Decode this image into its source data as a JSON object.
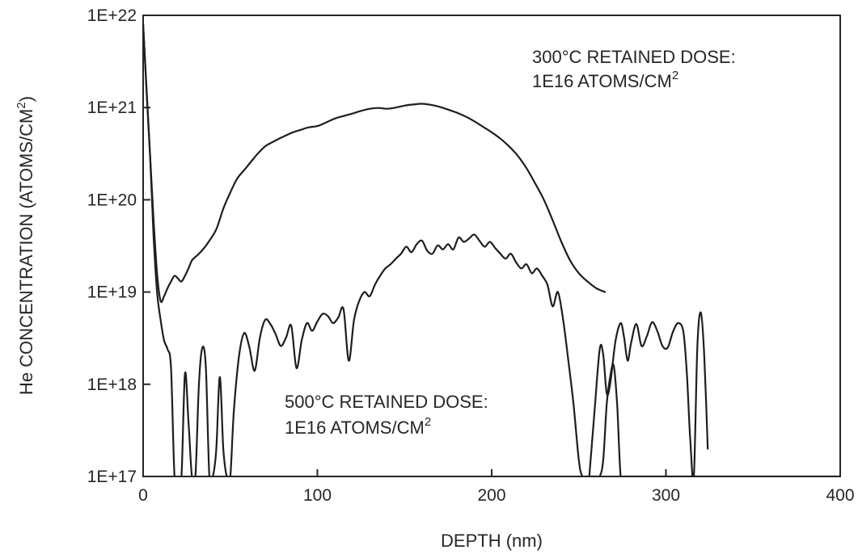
{
  "chart_data": {
    "type": "line",
    "xlabel": "DEPTH (nm)",
    "ylabel_main": "He CONCENTRATION (ATOMS/CM",
    "ylabel_sup": "2",
    "ylabel_close": ")",
    "xlim": [
      0,
      400
    ],
    "ylim": [
      1e+17,
      1e+22
    ],
    "yscale": "log",
    "grid": false,
    "x_ticks": [
      0,
      100,
      200,
      300,
      400
    ],
    "x_tick_labels": [
      "0",
      "100",
      "200",
      "300",
      "400"
    ],
    "y_ticks": [
      1e+22,
      1e+21,
      1e+20,
      1e+19,
      1e+18,
      1e+17
    ],
    "y_tick_labels": [
      "1E+22",
      "1E+21",
      "1E+20",
      "1E+19",
      "1E+18",
      "1E+17"
    ],
    "annotations": [
      {
        "id": "300c",
        "line1": "300°C RETAINED DOSE:",
        "line2_main": "1E16 ATOMS/CM",
        "line2_sup": "2"
      },
      {
        "id": "500c",
        "line1": "500°C RETAINED DOSE:",
        "line2_main": "1E16 ATOMS/CM",
        "line2_sup": "2"
      }
    ],
    "line_color": "#1e1e1e",
    "series": [
      {
        "x": [
          0,
          2,
          4,
          6,
          8,
          10,
          12,
          14,
          16,
          18,
          20,
          22,
          24,
          26,
          28,
          30,
          32,
          35,
          38,
          42,
          46,
          50,
          54,
          58,
          62,
          66,
          70,
          74,
          78,
          82,
          86,
          90,
          95,
          100,
          105,
          110,
          115,
          120,
          125,
          130,
          135,
          140,
          145,
          150,
          155,
          160,
          165,
          170,
          175,
          180,
          185,
          190,
          195,
          200,
          205,
          210,
          215,
          220,
          225,
          230,
          235,
          240,
          245,
          250,
          255,
          260,
          265
        ],
        "y": [
          8e+21,
          1.5e+21,
          3e+20,
          6e+19,
          1.6e+19,
          8e+18,
          9e+18,
          1.1e+19,
          1.3e+19,
          1.5e+19,
          1.4e+19,
          1.3e+19,
          1.5e+19,
          1.8e+19,
          2.2e+19,
          2.4e+19,
          2.6e+19,
          3e+19,
          3.6e+19,
          4.8e+19,
          8e+19,
          1.2e+20,
          1.7e+20,
          2.1e+20,
          2.6e+20,
          3.2e+20,
          3.8e+20,
          4.2e+20,
          4.6e+20,
          5e+20,
          5.4e+20,
          5.7e+20,
          6.1e+20,
          6.3e+20,
          6.9e+20,
          7.6e+20,
          8.1e+20,
          8.6e+20,
          9.2e+20,
          9.7e+20,
          9.9e+20,
          9.7e+20,
          1e+21,
          1.05e+21,
          1.08e+21,
          1.1e+21,
          1.07e+21,
          1.02e+21,
          9.5e+20,
          8.8e+20,
          8e+20,
          7.1e+20,
          6.2e+20,
          5.4e+20,
          4.6e+20,
          3.8e+20,
          3e+20,
          2.2e+20,
          1.5e+20,
          1e+20,
          6e+19,
          3.5e+19,
          2.2e+19,
          1.6e+19,
          1.3e+19,
          1.1e+19,
          1e+19
        ]
      },
      {
        "x": [
          0,
          2,
          4,
          6,
          8,
          10,
          12,
          14,
          16,
          18,
          20,
          22,
          24,
          26,
          28,
          30,
          32,
          34,
          36,
          38,
          40,
          42,
          44,
          46,
          48,
          50,
          52,
          55,
          58,
          61,
          64,
          67,
          70,
          73,
          76,
          79,
          82,
          85,
          88,
          91,
          94,
          97,
          100,
          103,
          106,
          109,
          112,
          115,
          118,
          121,
          124,
          127,
          130,
          133,
          136,
          139,
          142,
          145,
          148,
          151,
          154,
          157,
          160,
          163,
          166,
          169,
          172,
          175,
          178,
          181,
          184,
          187,
          190,
          193,
          196,
          199,
          202,
          205,
          208,
          211,
          214,
          217,
          220,
          223,
          226,
          229,
          232,
          235,
          238,
          241,
          244,
          247,
          250,
          252,
          254,
          256,
          258,
          260,
          262,
          264,
          266,
          268,
          270,
          272,
          274,
          276,
          278,
          280,
          282,
          284,
          286,
          288,
          290,
          293,
          296,
          299,
          302,
          305,
          308,
          310,
          312,
          314,
          316,
          318,
          320,
          322,
          324,
          326,
          328,
          330,
          332,
          334,
          336,
          338,
          340,
          342,
          345,
          348,
          351,
          353,
          355,
          357,
          359,
          362,
          365,
          368,
          370,
          372,
          374,
          376,
          378,
          380,
          382,
          384,
          386,
          388,
          390,
          393,
          396,
          400
        ],
        "y": [
          8e+21,
          1.5e+21,
          3e+20,
          4e+19,
          1e+19,
          5e+18,
          3e+18,
          2.4e+18,
          1.5e+18,
          1e+17,
          1e+17,
          1e+17,
          1.3e+18,
          4e+17,
          1e+17,
          1e+17,
          1e+18,
          2.5e+18,
          1.5e+18,
          1e+17,
          1e+17,
          2e+17,
          1.2e+18,
          2e+17,
          1e+17,
          1e+17,
          5e+17,
          2e+18,
          3.6e+18,
          2.5e+18,
          1.4e+18,
          3.2e+18,
          5e+18,
          4.5e+18,
          3.5e+18,
          2.6e+18,
          3.2e+18,
          4.3e+18,
          1.5e+18,
          3e+18,
          4.6e+18,
          3.8e+18,
          4.8e+18,
          5.8e+18,
          5.5e+18,
          4.6e+18,
          5.3e+18,
          6.5e+18,
          1.8e+18,
          5e+18,
          8e+18,
          1e+19,
          9e+18,
          1.2e+19,
          1.5e+19,
          1.8e+19,
          2e+19,
          2.3e+19,
          2.6e+19,
          3.1e+19,
          2.7e+19,
          3.3e+19,
          3.6e+19,
          2.8e+19,
          2.6e+19,
          3.2e+19,
          2.9e+19,
          3.3e+19,
          2.9e+19,
          3.9e+19,
          3.5e+19,
          3.8e+19,
          4.2e+19,
          3.6e+19,
          3.1e+19,
          3.5e+19,
          3e+19,
          2.6e+19,
          2.3e+19,
          2.6e+19,
          2.1e+19,
          1.8e+19,
          2e+19,
          1.6e+19,
          1.8e+19,
          1.5e+19,
          1.2e+19,
          7e+18,
          1e+19,
          5e+18,
          1.8e+18,
          6e+17,
          1.5e+17,
          1e+17,
          1e+17,
          1e+17,
          1e+17,
          1e+17,
          1e+17,
          1.5e+17,
          6e+17,
          1.2e+18,
          1.6e+18,
          6e+17,
          1e+17,
          1e+17,
          1e+17,
          1e+17,
          1e+17,
          1e+17,
          1e+17,
          1e+17,
          1e+17,
          1e+17,
          1e+17,
          1e+17,
          1e+17,
          1e+17,
          1e+17,
          1e+17,
          1e+17,
          1e+17,
          1e+17,
          1e+17,
          1e+17,
          1e+17,
          1e+17,
          1e+17,
          1e+17,
          1e+17,
          1e+17,
          1e+17,
          1e+17,
          1e+17,
          1e+17,
          1e+17,
          1e+17,
          1e+17,
          1e+17,
          1e+17,
          1e+17,
          1e+17,
          1e+17,
          1e+17,
          1e+17,
          1e+17,
          1e+17,
          1e+17,
          1e+17,
          1e+17,
          1e+17,
          1e+17,
          1e+17,
          1e+17,
          1e+17,
          1e+17,
          1e+17,
          1e+17,
          1e+17,
          1e+17
        ]
      },
      {
        "x": [
          256,
          259,
          262,
          264,
          266,
          268,
          271,
          274,
          276,
          278,
          280,
          283,
          286,
          289,
          292,
          295,
          298,
          301,
          304,
          307,
          310,
          312,
          314,
          316,
          318,
          320,
          322,
          324
        ],
        "y": [
          1e+17,
          5e+17,
          2.4e+18,
          2.1e+18,
          8e+17,
          1e+18,
          2.9e+18,
          4.6e+18,
          3.2e+18,
          1.8e+18,
          2.8e+18,
          4.5e+18,
          2.6e+18,
          3.3e+18,
          4.7e+18,
          3.8e+18,
          2.6e+18,
          2.5e+18,
          3.7e+18,
          4.6e+18,
          3.7e+18,
          1.3e+18,
          2.4e+17,
          1e+17,
          2.5e+18,
          6e+18,
          2e+18,
          2e+17
        ]
      }
    ]
  }
}
